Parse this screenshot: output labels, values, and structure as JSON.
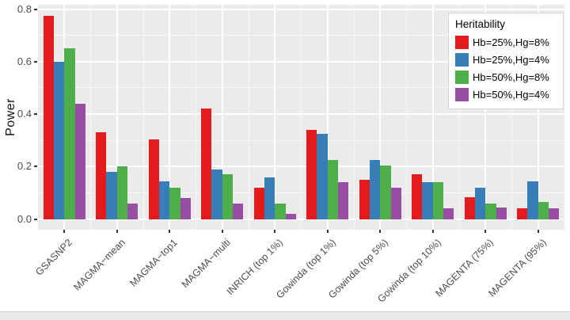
{
  "chart_data": {
    "type": "bar",
    "title": "",
    "xlabel": "",
    "ylabel": "Power",
    "ylim": [
      0,
      0.8
    ],
    "y_ticks": [
      0.0,
      0.2,
      0.4,
      0.6,
      0.8
    ],
    "y_tick_labels": [
      "0.0",
      "0.2",
      "0.4",
      "0.6",
      "0.8"
    ],
    "y_minor_ticks": [
      0.1,
      0.3,
      0.5,
      0.7
    ],
    "grid": "white major and minor gridlines on grey panel",
    "legend_title": "Heritability",
    "legend_position": "top-right inside plot",
    "categories": [
      "GSASNP2",
      "MAGMA−mean",
      "MAGMA−top1",
      "MAGMA−multi",
      "INRICH (top 1%)",
      "Gowinda (top 1%)",
      "Gowinda (top 5%)",
      "Gowinda (top 10%)",
      "MAGENTA (75%)",
      "MAGENTA (95%)"
    ],
    "series": [
      {
        "name": "Hb=25%,Hg=8%",
        "color": "#E41A1C",
        "values": [
          0.775,
          0.33,
          0.305,
          0.42,
          0.12,
          0.34,
          0.15,
          0.17,
          0.085,
          0.04
        ]
      },
      {
        "name": "Hb=25%,Hg=4%",
        "color": "#377EB8",
        "values": [
          0.6,
          0.18,
          0.145,
          0.19,
          0.16,
          0.325,
          0.225,
          0.14,
          0.12,
          0.145
        ]
      },
      {
        "name": "Hb=50%,Hg=8%",
        "color": "#4DAF4A",
        "values": [
          0.65,
          0.2,
          0.12,
          0.17,
          0.06,
          0.225,
          0.205,
          0.14,
          0.06,
          0.065
        ]
      },
      {
        "name": "Hb=50%,Hg=4%",
        "color": "#984EA3",
        "values": [
          0.44,
          0.06,
          0.08,
          0.06,
          0.02,
          0.14,
          0.12,
          0.04,
          0.045,
          0.04
        ]
      }
    ],
    "panel_background": "#EBEBEB",
    "gridline_color": "#FFFFFF",
    "axis_text_color": "#4d4d4d",
    "axis_tick_color": "#333333"
  }
}
